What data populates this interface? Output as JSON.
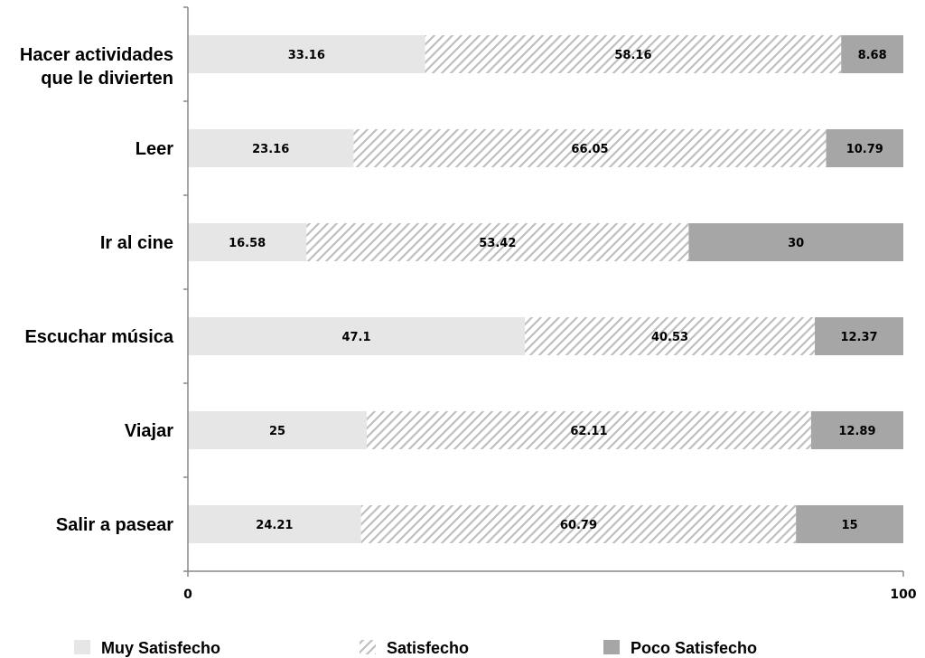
{
  "chart_data": {
    "type": "bar",
    "orientation": "horizontal",
    "stacked": true,
    "categories": [
      "Hacer actividades que le divierten",
      "Leer",
      "Ir al cine",
      "Escuchar música",
      "Viajar",
      "Salir a pasear"
    ],
    "category_lines": [
      [
        "Hacer actividades",
        "que le divierten"
      ],
      [
        "Leer"
      ],
      [
        "Ir al cine"
      ],
      [
        "Escuchar música"
      ],
      [
        "Viajar"
      ],
      [
        "Salir a pasear"
      ]
    ],
    "series": [
      {
        "name": "Muy Satisfecho",
        "values": [
          33.16,
          23.16,
          16.58,
          47.1,
          25,
          24.21
        ],
        "color": "#e6e6e6",
        "pattern": "solid"
      },
      {
        "name": "Satisfecho",
        "values": [
          58.16,
          66.05,
          53.42,
          40.53,
          62.11,
          60.79
        ],
        "color": "#bfbfbf",
        "pattern": "diagonal-hatch"
      },
      {
        "name": "Poco Satisfecho",
        "values": [
          8.68,
          10.79,
          30,
          12.37,
          12.89,
          15
        ],
        "color": "#a6a6a6",
        "pattern": "solid"
      }
    ],
    "xlim": [
      0,
      100
    ],
    "xticks": [
      "0",
      "100"
    ],
    "title": "",
    "xlabel": "",
    "ylabel": "",
    "grid": false,
    "legend_position": "bottom"
  }
}
